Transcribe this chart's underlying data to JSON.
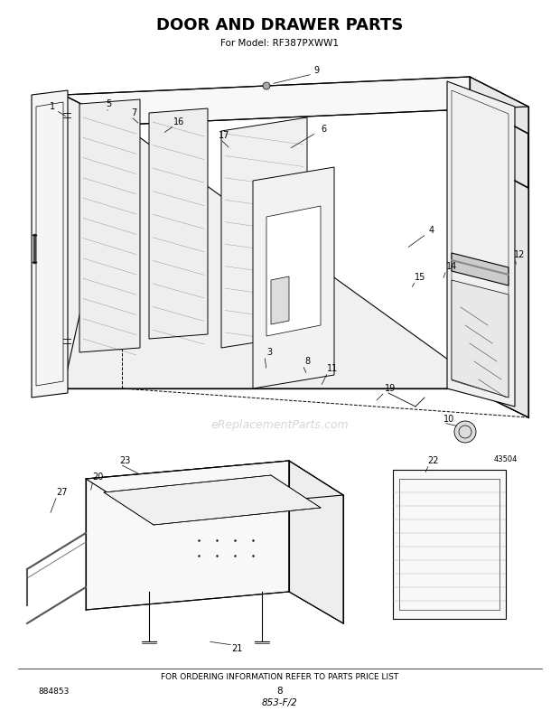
{
  "title": "DOOR AND DRAWER PARTS",
  "subtitle": "For Model: RF387PXWW1",
  "footer_text": "FOR ORDERING INFORMATION REFER TO PARTS PRICE LIST",
  "page_number": "8",
  "part_number_bottom_left": "884853",
  "italic_text": "853-F/2",
  "diagram_number": "43504",
  "bg_color": "#ffffff",
  "title_fontsize": 13,
  "subtitle_fontsize": 7.5,
  "footer_fontsize": 6.5
}
